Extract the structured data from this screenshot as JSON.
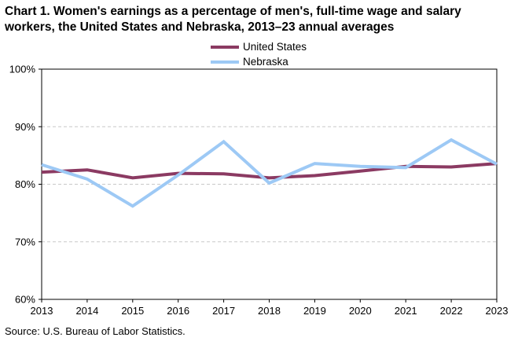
{
  "chart_data": {
    "type": "line",
    "title": "Chart 1. Women's earnings as a percentage of men's, full-time wage and salary workers, the United States and Nebraska, 2013–23 annual averages",
    "xlabel": "",
    "ylabel": "",
    "categories": [
      "2013",
      "2014",
      "2015",
      "2016",
      "2017",
      "2018",
      "2019",
      "2020",
      "2021",
      "2022",
      "2023"
    ],
    "ylim": [
      60,
      100
    ],
    "yticks": [
      60,
      70,
      80,
      90,
      100
    ],
    "ytick_labels": [
      "60%",
      "70%",
      "80%",
      "90%",
      "100%"
    ],
    "grid": "horizontal dashed",
    "legend_position": "top-center",
    "series": [
      {
        "name": "United States",
        "color": "#8B3A62",
        "values": [
          82.1,
          82.5,
          81.1,
          81.9,
          81.8,
          81.1,
          81.5,
          82.3,
          83.1,
          83.0,
          83.6
        ]
      },
      {
        "name": "Nebraska",
        "color": "#9DC9F5",
        "values": [
          83.4,
          80.9,
          76.2,
          81.6,
          87.4,
          80.2,
          83.6,
          83.1,
          82.9,
          87.7,
          83.5
        ]
      }
    ],
    "source": "Source:  U.S. Bureau of Labor Statistics."
  }
}
